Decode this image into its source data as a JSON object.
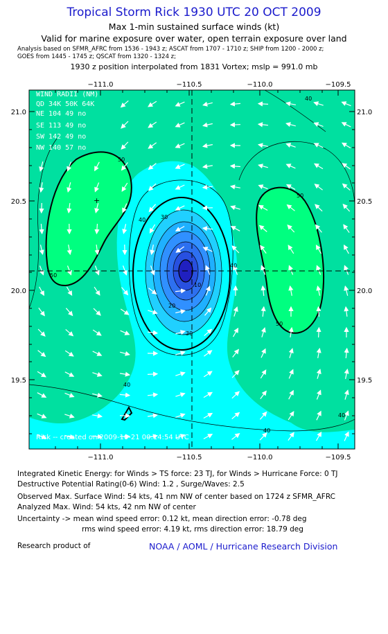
{
  "header": {
    "title": "Tropical Storm Rick 1930 UTC 20 OCT 2009",
    "subtitle1": "Max 1-min sustained surface winds (kt)",
    "subtitle2": "Valid for marine exposure over water, open terrain exposure over land",
    "analysis_line1": "Analysis based on   SFMR_AFRC from 1536 - 1943 z;  ASCAT from 1707 - 1710 z;  SHIP from 1200 - 2000 z;",
    "analysis_line2": "GOES from 1445 - 1745 z;  QSCAT from 1320 - 1324 z;",
    "position_line": "1930 z position interpolated from 1831 Vortex; mslp = 991.0 mb"
  },
  "map": {
    "lon_ticks": [
      "−111.0",
      "−110.5",
      "−110.0",
      "−109.5"
    ],
    "lat_ticks": [
      "21.0",
      "20.5",
      "20.0",
      "19.5"
    ],
    "lon_range": [
      -111.4,
      -109.45
    ],
    "lat_range": [
      19.1,
      21.12
    ],
    "center": {
      "lon": -110.43,
      "lat": 20.11
    },
    "contour_labels": [
      "40",
      "50",
      "50",
      "50",
      "40",
      "30",
      "10",
      "20",
      "30",
      "50",
      "40",
      "40",
      "40",
      "40"
    ],
    "wind_radii": {
      "title": "WIND RADII (NM)",
      "header": "QD  34K  50K  64K",
      "rows": [
        "NE  104   49   no",
        "SE  113   49   no",
        "SW  142   49   no",
        "NW  140   57   no"
      ]
    },
    "credit": "Rick -- created on 2009-10-21 00:14:54 UTC",
    "colors": {
      "bg": "#00ffff",
      "c40": "#00e0a0",
      "c50": "#00ff80",
      "c20": "#20d0ff",
      "c10": "#3090ff",
      "c0": "#2020c0"
    }
  },
  "footer": {
    "ike": "Integrated Kinetic Energy:  for Winds > TS force: 23 TJ,  for Winds > Hurricane Force: 0 TJ",
    "dpr": "Destructive Potential Rating(0-6)   Wind: 1.2 , Surge/Waves: 2.5",
    "obs": "Observed Max. Surface Wind: 54 kts, 41 nm NW of center based on 1724 z SFMR_AFRC",
    "analyzed": "Analyzed Max. Wind: 54 kts, 42 nm NW of center",
    "uncertainty1": "Uncertainty -> mean wind speed error: 0.12 kt,   mean direction error:  -0.78 deg",
    "uncertainty2": "rms wind speed error: 4.19 kt,   rms direction error: 18.79 deg",
    "research": "Research product of",
    "org": "NOAA / AOML / Hurricane Research Division"
  }
}
